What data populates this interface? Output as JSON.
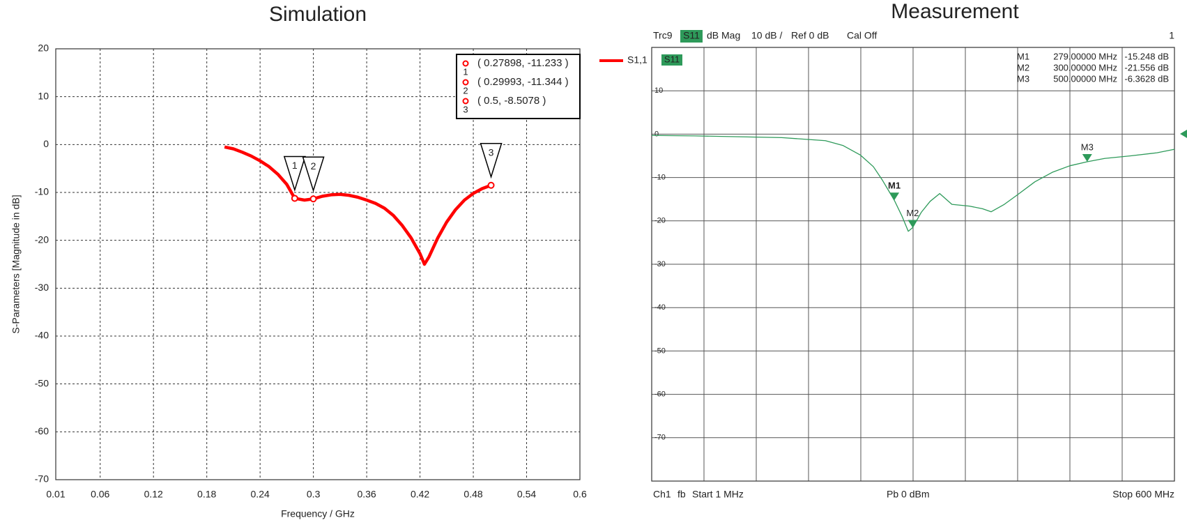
{
  "chart_data": [
    {
      "type": "line",
      "title": "Simulation",
      "x_label": "Frequency / GHz",
      "y_label": "S-Parameters [Magnitude in dB]",
      "xlim": [
        0.01,
        0.6
      ],
      "xticks": [
        0.01,
        0.06,
        0.12,
        0.18,
        0.24,
        0.3,
        0.36,
        0.42,
        0.48,
        0.54,
        0.6
      ],
      "ylim": [
        -70,
        20
      ],
      "yticks": [
        -70,
        -60,
        -50,
        -40,
        -30,
        -20,
        -10,
        0,
        10,
        20
      ],
      "grid": true,
      "grid_style": "dashed",
      "x": [
        0.2,
        0.21,
        0.22,
        0.23,
        0.24,
        0.25,
        0.26,
        0.27,
        0.27898,
        0.29,
        0.29993,
        0.31,
        0.32,
        0.33,
        0.34,
        0.35,
        0.36,
        0.37,
        0.38,
        0.39,
        0.4,
        0.41,
        0.42,
        0.425,
        0.43,
        0.44,
        0.45,
        0.46,
        0.47,
        0.48,
        0.49,
        0.5
      ],
      "series": [
        {
          "name": "S1,1",
          "color": "#ff0000",
          "values": [
            -0.5,
            -0.9,
            -1.6,
            -2.4,
            -3.4,
            -4.6,
            -6.2,
            -8.3,
            -11.233,
            -11.6,
            -11.344,
            -10.8,
            -10.5,
            -10.4,
            -10.6,
            -11,
            -11.6,
            -12.3,
            -13.3,
            -14.8,
            -16.9,
            -19.5,
            -22.8,
            -25,
            -23.5,
            -19.5,
            -16.2,
            -13.6,
            -11.6,
            -10.2,
            -9.2,
            -8.5078
          ]
        }
      ],
      "markers": [
        {
          "name": "1",
          "x": 0.27898,
          "y": -11.233,
          "label": "( 0.27898, -11.233 )"
        },
        {
          "name": "2",
          "x": 0.29993,
          "y": -11.344,
          "label": "( 0.29993, -11.344 )"
        },
        {
          "name": "3",
          "x": 0.5,
          "y": -8.5078,
          "label": "( 0.5, -8.5078 )"
        }
      ]
    },
    {
      "type": "line",
      "title": "Measurement",
      "header": {
        "trace": "Trc9",
        "param": "S11",
        "format": "dB Mag",
        "scale": "10 dB /",
        "ref": "Ref 0 dB",
        "cal": "Cal Off",
        "channel_index": "1"
      },
      "footer": {
        "channel": "Ch1",
        "mode": "fb",
        "start": "Start 1 MHz",
        "power": "Pb 0 dBm",
        "stop": "Stop 600 MHz"
      },
      "xlim": [
        1,
        600
      ],
      "ylim": [
        -80,
        20
      ],
      "yticks": [
        10,
        0,
        -10,
        -20,
        -30,
        -40,
        -50,
        -60,
        -70
      ],
      "grid": true,
      "grid_style": "solid",
      "x": [
        1,
        50,
        100,
        150,
        200,
        220,
        240,
        255,
        265,
        279,
        288,
        295,
        300,
        310,
        320,
        331,
        345,
        365,
        380,
        390,
        405,
        420,
        440,
        460,
        480,
        500,
        520,
        550,
        580,
        600
      ],
      "series": [
        {
          "name": "S11",
          "color": "#2e9a5a",
          "values": [
            -0.3,
            -0.4,
            -0.6,
            -0.8,
            -1.5,
            -2.6,
            -4.8,
            -7.5,
            -10.5,
            -15.248,
            -19,
            -22.4,
            -21.556,
            -18,
            -15.5,
            -13.7,
            -16.2,
            -16.6,
            -17.2,
            -17.9,
            -16.2,
            -14,
            -11,
            -8.8,
            -7.3,
            -6.3628,
            -5.6,
            -5,
            -4.3,
            -3.5
          ]
        }
      ],
      "markers": [
        {
          "name": "M1",
          "x": 279,
          "y": -15.248,
          "x_label": "279.00000 MHz",
          "y_label": "-15.248 dB"
        },
        {
          "name": "M2",
          "x": 300,
          "y": -21.556,
          "x_label": "300.00000 MHz",
          "y_label": "-21.556 dB"
        },
        {
          "name": "M3",
          "x": 500,
          "y": -6.3628,
          "x_label": "500.00000 MHz",
          "y_label": "-6.3628 dB"
        }
      ]
    }
  ]
}
